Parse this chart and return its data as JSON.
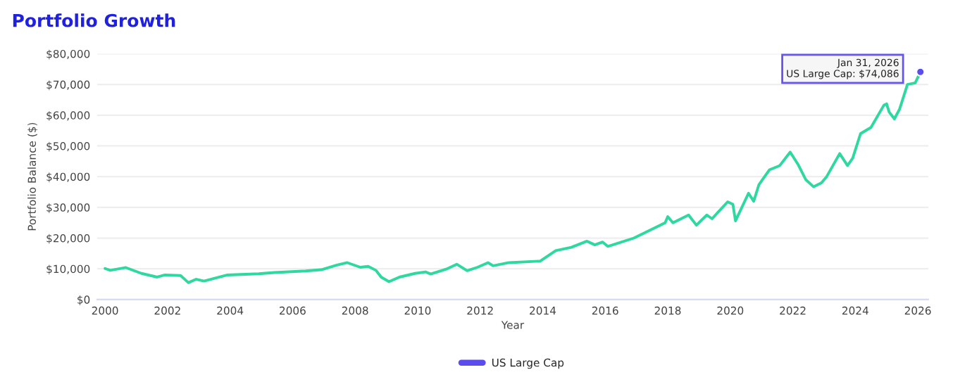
{
  "chart_data": {
    "type": "line",
    "title": "Portfolio Growth",
    "xlabel": "Year",
    "ylabel": "Portfolio Balance ($)",
    "x": [
      "2000-01",
      "2000-03",
      "2000-09",
      "2001-03",
      "2001-09",
      "2001-12",
      "2002-06",
      "2002-09",
      "2002-12",
      "2003-03",
      "2003-12",
      "2004-12",
      "2005-06",
      "2006-06",
      "2006-12",
      "2007-06",
      "2007-10",
      "2008-03",
      "2008-06",
      "2008-09",
      "2008-11",
      "2009-02",
      "2009-06",
      "2009-12",
      "2010-04",
      "2010-06",
      "2010-12",
      "2011-04",
      "2011-08",
      "2011-12",
      "2012-04",
      "2012-06",
      "2012-12",
      "2013-12",
      "2014-06",
      "2014-12",
      "2015-06",
      "2015-09",
      "2015-12",
      "2016-02",
      "2016-12",
      "2017-12",
      "2018-01",
      "2018-03",
      "2018-09",
      "2018-12",
      "2019-04",
      "2019-06",
      "2019-12",
      "2020-02",
      "2020-03",
      "2020-08",
      "2020-10",
      "2020-12",
      "2021-04",
      "2021-08",
      "2021-12",
      "2022-03",
      "2022-06",
      "2022-09",
      "2022-12",
      "2023-02",
      "2023-07",
      "2023-10",
      "2023-12",
      "2024-03",
      "2024-07",
      "2024-12",
      "2025-01",
      "2025-02",
      "2025-04",
      "2025-06",
      "2025-09",
      "2025-12",
      "2026-01-31"
    ],
    "series": [
      {
        "name": "US Large Cap",
        "color": "#5b4cf0",
        "marker": "circle",
        "values": [
          null,
          null,
          null,
          null,
          null,
          null,
          null,
          null,
          null,
          null,
          null,
          null,
          null,
          null,
          null,
          null,
          null,
          null,
          null,
          null,
          null,
          null,
          null,
          null,
          null,
          null,
          null,
          null,
          null,
          null,
          null,
          null,
          null,
          null,
          null,
          null,
          null,
          null,
          null,
          null,
          null,
          null,
          null,
          null,
          null,
          null,
          null,
          null,
          null,
          null,
          null,
          null,
          null,
          null,
          null,
          null,
          null,
          null,
          null,
          null,
          null,
          null,
          null,
          null,
          null,
          null,
          null,
          null,
          null,
          null,
          null,
          null,
          null,
          null,
          74086
        ]
      },
      {
        "color": "#2ed8a0",
        "values": [
          10100,
          9500,
          10400,
          8500,
          7300,
          8000,
          7800,
          5500,
          6600,
          6000,
          8000,
          8400,
          8800,
          9300,
          9700,
          11200,
          12000,
          10500,
          10800,
          9500,
          7300,
          5800,
          7300,
          8500,
          9000,
          8300,
          9900,
          11500,
          9400,
          10500,
          12000,
          11000,
          12000,
          12500,
          15900,
          17000,
          19000,
          17800,
          18700,
          17300,
          20000,
          25000,
          27000,
          25000,
          27500,
          24200,
          27500,
          26300,
          31800,
          31000,
          25600,
          34600,
          32000,
          37400,
          42200,
          43600,
          48000,
          44000,
          39000,
          36700,
          38000,
          40000,
          47500,
          43600,
          46000,
          54000,
          56000,
          63300,
          63700,
          61000,
          58800,
          62000,
          70000,
          70500,
          74080
        ]
      }
    ],
    "xlim": [
      "1999-10",
      "2026-05"
    ],
    "xticks": [
      {
        "value": "2000",
        "label": "2000"
      },
      {
        "value": "2002",
        "label": "2002"
      },
      {
        "value": "2004",
        "label": "2004"
      },
      {
        "value": "2006",
        "label": "2006"
      },
      {
        "value": "2008",
        "label": "2008"
      },
      {
        "value": "2010",
        "label": "2010"
      },
      {
        "value": "2012",
        "label": "2012"
      },
      {
        "value": "2014",
        "label": "2014"
      },
      {
        "value": "2016",
        "label": "2016"
      },
      {
        "value": "2018",
        "label": "2018"
      },
      {
        "value": "2020",
        "label": "2020"
      },
      {
        "value": "2022",
        "label": "2022"
      },
      {
        "value": "2024",
        "label": "2024"
      },
      {
        "value": "2026",
        "label": "2026"
      }
    ],
    "ylim": [
      0,
      80000
    ],
    "yticks": [
      {
        "value": 0,
        "label": "$0"
      },
      {
        "value": 10000,
        "label": "$10,000"
      },
      {
        "value": 20000,
        "label": "$20,000"
      },
      {
        "value": 30000,
        "label": "$30,000"
      },
      {
        "value": 40000,
        "label": "$40,000"
      },
      {
        "value": 50000,
        "label": "$50,000"
      },
      {
        "value": 60000,
        "label": "$60,000"
      },
      {
        "value": 70000,
        "label": "$70,000"
      },
      {
        "value": 80000,
        "label": "$80,000"
      }
    ],
    "grid": "y",
    "legend": "bottom",
    "marker": "none",
    "line_style": "solid",
    "annotations": [
      "Jan 31, 2026\nUS Large Cap: $74,086"
    ]
  }
}
